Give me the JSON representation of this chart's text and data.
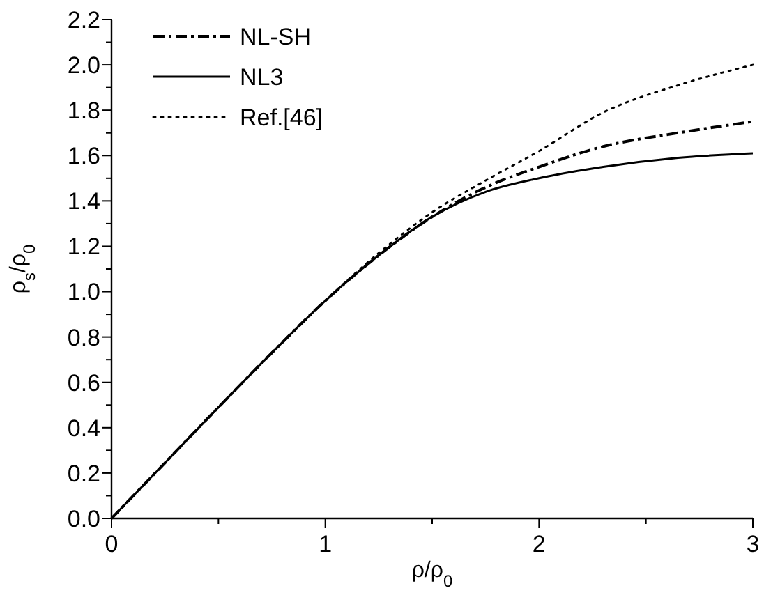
{
  "chart_data": {
    "type": "line",
    "xlabel": "ρ/ρ$_{0}$",
    "ylabel": "ρ$_{s}$/ρ$_{0}$",
    "xlim": [
      0,
      3
    ],
    "xticks": [
      0,
      {
        "value": 0.5,
        "label": null
      },
      1,
      {
        "value": 1.5,
        "label": null
      },
      2,
      {
        "value": 2.5,
        "label": null
      },
      3
    ],
    "ylim": [
      0,
      2.2
    ],
    "yticks": [
      {
        "value": 0,
        "label": "0.0"
      },
      {
        "value": 0.1,
        "label": null
      },
      {
        "value": 0.2,
        "label": "0.2"
      },
      {
        "value": 0.3,
        "label": null
      },
      {
        "value": 0.4,
        "label": "0.4"
      },
      {
        "value": 0.5,
        "label": null
      },
      {
        "value": 0.6,
        "label": "0.6"
      },
      {
        "value": 0.7,
        "label": null
      },
      {
        "value": 0.8,
        "label": "0.8"
      },
      {
        "value": 0.9,
        "label": null
      },
      {
        "value": 1,
        "label": "1.0"
      },
      {
        "value": 1.1,
        "label": null
      },
      {
        "value": 1.2,
        "label": "1.2"
      },
      {
        "value": 1.3,
        "label": null
      },
      {
        "value": 1.4,
        "label": "1.4"
      },
      {
        "value": 1.5,
        "label": null
      },
      {
        "value": 1.6,
        "label": "1.6"
      },
      {
        "value": 1.7,
        "label": null
      },
      {
        "value": 1.8,
        "label": "1.8"
      },
      {
        "value": 1.9,
        "label": null
      },
      {
        "value": 2,
        "label": "2.0"
      },
      {
        "value": 2.1,
        "label": null
      },
      {
        "value": 2.2,
        "label": "2.2"
      }
    ],
    "x": [
      0,
      0.25,
      0.5,
      0.75,
      1,
      1.25,
      1.5,
      1.75,
      2,
      2.3,
      2.65,
      3
    ],
    "series": [
      {
        "name": "NL-SH",
        "color": "#000000",
        "line_style": "dashed",
        "values": [
          0,
          0.245,
          0.49,
          0.73,
          0.96,
          1.16,
          1.33,
          1.46,
          1.55,
          1.64,
          1.7,
          1.75
        ]
      },
      {
        "name": "NL3",
        "color": "#000000",
        "line_style": "solid",
        "values": [
          0,
          0.245,
          0.49,
          0.73,
          0.96,
          1.16,
          1.33,
          1.44,
          1.5,
          1.55,
          1.59,
          1.61
        ]
      },
      {
        "name": "Ref.[46]",
        "color": "#000000",
        "line_style": "dotted",
        "values": [
          0,
          0.245,
          0.49,
          0.73,
          0.96,
          1.17,
          1.35,
          1.49,
          1.62,
          1.79,
          1.91,
          2.0
        ]
      }
    ],
    "legend": "top left",
    "marker": "none",
    "grid": false
  }
}
